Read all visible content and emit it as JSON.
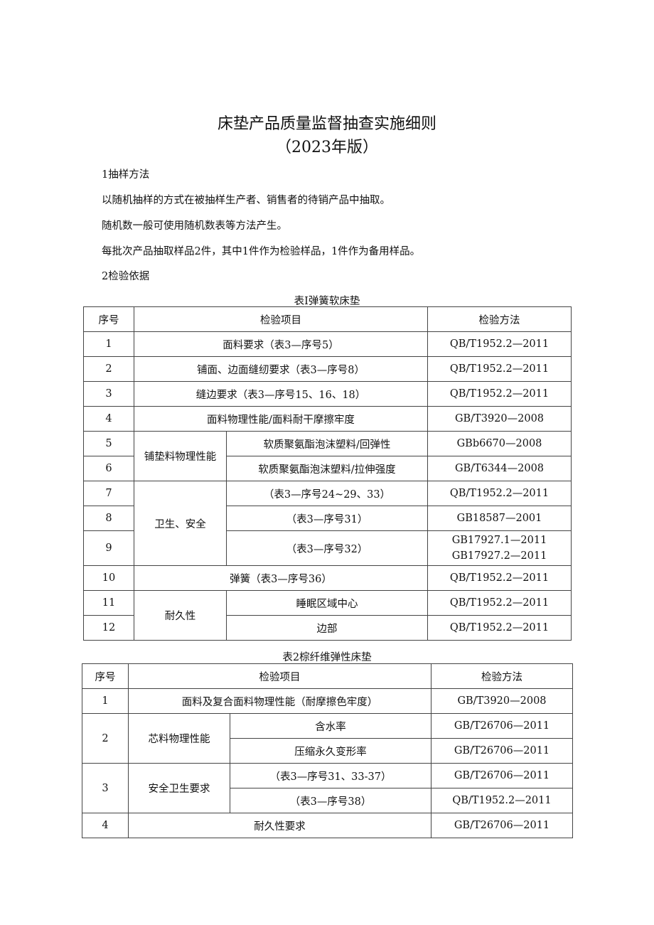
{
  "title": "床垫产品质量监督抽查实施细则",
  "subtitle": "（2023年版）",
  "paragraphs": [
    "1抽样方法",
    "以随机抽样的方式在被抽样生产者、销售者的待销产品中抽取。",
    "随机数一般可使用随机数表等方法产生。",
    "每批次产品抽取样品2件，其中1件作为检验样品，1件作为备用样品。",
    "2检验依据"
  ],
  "table1": {
    "caption": "表I弹簧软床垫",
    "headers": [
      "序号",
      "检验项目",
      "检验方法"
    ],
    "rows": [
      {
        "no": "1",
        "item": "面料要求（表3—序号5）",
        "method": [
          "QB/T1952.2—2011"
        ]
      },
      {
        "no": "2",
        "item": "铺面、边面缝纫要求（表3—序号8）",
        "method": [
          "QB/T1952.2—2011"
        ]
      },
      {
        "no": "3",
        "item": "缝边要求（表3—序号15、16、18）",
        "method": [
          "QB/T1952.2—2011"
        ]
      },
      {
        "no": "4",
        "item": "面料物理性能/面料耐干摩擦牢度",
        "method": [
          "GB/T3920—2008"
        ]
      },
      {
        "group": "铺垫料物理性能",
        "rows": [
          {
            "no": "5",
            "item": "软质聚氨酯泡沫塑料/回弹性",
            "method": [
              "GBb6670—2008"
            ]
          },
          {
            "no": "6",
            "item": "软质聚氨酯泡沫塑料/拉伸强度",
            "method": [
              "GB/T6344—2008"
            ]
          }
        ]
      },
      {
        "group": "卫生、安全",
        "rows": [
          {
            "no": "7",
            "item": "（表3—序号24~29、33）",
            "method": [
              "QB/T1952.2—2011"
            ]
          },
          {
            "no": "8",
            "item": "（表3—序号31）",
            "method": [
              "GB18587—2001"
            ]
          },
          {
            "no": "9",
            "item": "（表3—序号32）",
            "method": [
              "GB17927.1—2011",
              "GB17927.2—2011"
            ]
          }
        ]
      },
      {
        "no": "10",
        "item": "弹簧（表3—序号36）",
        "method": [
          "QB/T1952.2—2011"
        ]
      },
      {
        "group": "耐久性",
        "rows": [
          {
            "no": "11",
            "item": "睡眠区域中心",
            "method": [
              "QB/T1952.2—2011"
            ]
          },
          {
            "no": "12",
            "item": "边部",
            "method": [
              "QB/T1952.2—2011"
            ]
          }
        ]
      }
    ]
  },
  "table2": {
    "caption": "表2棕纤维弹性床垫",
    "headers": [
      "序号",
      "检验项目",
      "检验方法"
    ],
    "rows": [
      {
        "no": "1",
        "item": "面料及复合面料物理性能（耐摩擦色牢度）",
        "method": [
          "GB/T3920—2008"
        ]
      },
      {
        "no": "2",
        "group": "芯料物理性能",
        "rows": [
          {
            "item": "含水率",
            "method": [
              "GB/T26706—2011"
            ]
          },
          {
            "item": "压缩永久变形率",
            "method": [
              "GB/T26706—2011"
            ]
          }
        ]
      },
      {
        "no": "3",
        "group": "安全卫生要求",
        "rows": [
          {
            "item": "（表3—序号31、33-37）",
            "method": [
              "GB/T26706—2011"
            ]
          },
          {
            "item": "（表3—序号38）",
            "method": [
              "QB/T1952.2—2011"
            ]
          }
        ]
      },
      {
        "no": "4",
        "item": "耐久性要求",
        "method": [
          "GB/T26706—2011"
        ]
      }
    ]
  }
}
